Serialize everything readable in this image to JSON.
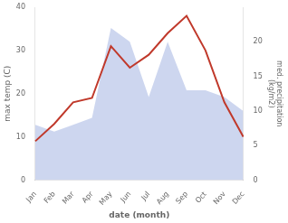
{
  "chart_data": {
    "type": "line",
    "xlabel": "date (month)",
    "ylabel": "max temp (C)",
    "y2label": "med. precipitation\n(kg/m2)",
    "categories": [
      "Jan",
      "Feb",
      "Mar",
      "Apr",
      "May",
      "Jun",
      "Jul",
      "Aug",
      "Sep",
      "Oct",
      "Nov",
      "Dec"
    ],
    "series": [
      {
        "type": "line",
        "color": "#c0392b",
        "values": [
          9,
          13,
          18,
          19,
          31,
          26,
          29,
          34,
          38,
          30,
          18,
          10
        ]
      },
      {
        "type": "area",
        "color": "#b8c4e8",
        "axis": "y2",
        "values": [
          8,
          7,
          8,
          9,
          22,
          20,
          12,
          20,
          13,
          13,
          12,
          10
        ]
      }
    ],
    "ylim": [
      0,
      40
    ],
    "yticks": [
      0,
      10,
      20,
      30,
      40
    ],
    "y2lim": [
      0,
      25
    ],
    "y2ticks": [
      0,
      5,
      10,
      15,
      20
    ],
    "grid": false
  }
}
